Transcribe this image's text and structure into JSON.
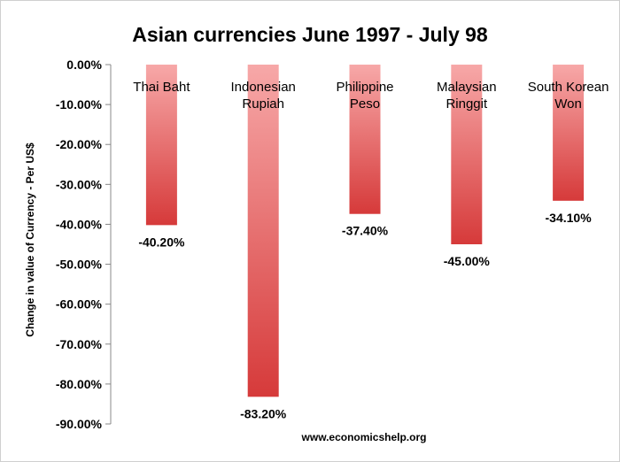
{
  "chart_data": {
    "type": "bar",
    "title": "Asian currencies June 1997 - July 98",
    "ylabel": "Change in value of Currency - Per US$",
    "xlabel": "",
    "categories": [
      [
        "Thai Baht"
      ],
      [
        "Indonesian",
        "Rupiah"
      ],
      [
        "Philippine",
        "Peso"
      ],
      [
        "Malaysian",
        "Ringgit"
      ],
      [
        "South Korean",
        "Won"
      ]
    ],
    "values": [
      -40.2,
      -83.2,
      -37.4,
      -45.0,
      -34.1
    ],
    "value_labels": [
      "-40.20%",
      "-83.20%",
      "-37.40%",
      "-45.00%",
      "-34.10%"
    ],
    "ylim": [
      -90,
      0
    ],
    "yticks": [
      0,
      -10,
      -20,
      -30,
      -40,
      -50,
      -60,
      -70,
      -80,
      -90
    ],
    "ytick_labels": [
      "0.00%",
      "-10.00%",
      "-20.00%",
      "-30.00%",
      "-40.00%",
      "-50.00%",
      "-60.00%",
      "-70.00%",
      "-80.00%",
      "-90.00%"
    ],
    "grid": false,
    "legend": "none",
    "bar_colors": {
      "top": "#f7a8a8",
      "bottom": "#d63a3a"
    },
    "source": "www.economicshelp.org"
  }
}
